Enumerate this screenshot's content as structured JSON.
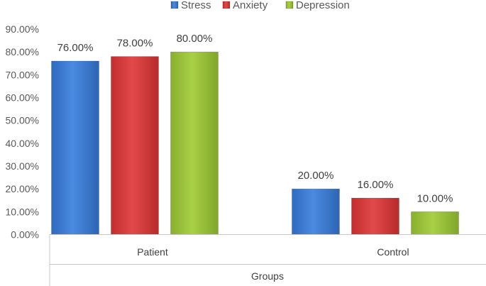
{
  "chart_data": {
    "type": "bar",
    "categories": [
      "Patient",
      "Control"
    ],
    "series": [
      {
        "name": "Stress",
        "values": [
          76,
          20
        ],
        "color": "#3b7bd0"
      },
      {
        "name": "Anxiety",
        "values": [
          78,
          16
        ],
        "color": "#d63a3a"
      },
      {
        "name": "Depression",
        "values": [
          80,
          10
        ],
        "color": "#9bc13c"
      }
    ],
    "value_format": "percent-2dp",
    "title": "",
    "xlabel": "Groups",
    "ylabel": "",
    "ylim": [
      0,
      90
    ],
    "yticks": [
      "0.00%",
      "10.00%",
      "20.00%",
      "30.00%",
      "40.00%",
      "50.00%",
      "60.00%",
      "70.00%",
      "80.00%",
      "90.00%"
    ],
    "data_labels": [
      [
        "76.00%",
        "20.00%"
      ],
      [
        "78.00%",
        "16.00%"
      ],
      [
        "80.00%",
        "10.00%"
      ]
    ],
    "legend": {
      "position": "top",
      "entries": [
        "Stress",
        "Anxiety",
        "Depression"
      ]
    },
    "grid": false
  }
}
